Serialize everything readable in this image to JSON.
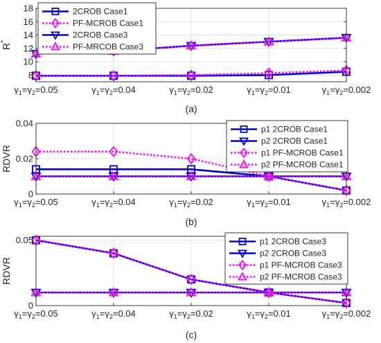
{
  "chart_data": [
    {
      "type": "line",
      "caption": "(a)",
      "ylabel": "R",
      "ylabel_sup": "*",
      "x": [
        "γ1=γ2=0.05",
        "γ1=γ2=0.04",
        "γ1=γ2=0.02",
        "γ1=γ2=0.01",
        "γ1=γ2=0.002"
      ],
      "ylim": [
        7,
        18
      ],
      "yticks": [
        8,
        10,
        12,
        14,
        16,
        18
      ],
      "grid": true,
      "legend_position": "top-left",
      "series": [
        {
          "name": "2CROB Case1",
          "values": [
            7.9,
            7.9,
            7.9,
            8.0,
            8.5
          ],
          "color": "#0000cd",
          "dash": "solid",
          "marker": "square"
        },
        {
          "name": "PF-MCROB Case1",
          "values": [
            7.9,
            7.9,
            8.0,
            8.3,
            8.7
          ],
          "color": "#ff00ff",
          "dash": "dotted",
          "marker": "diamond"
        },
        {
          "name": "2CROB Case3",
          "values": [
            11.2,
            11.6,
            12.4,
            13.0,
            13.6
          ],
          "color": "#0000cd",
          "dash": "solid",
          "marker": "triangle-down"
        },
        {
          "name": "PF-MRCOB Case3",
          "values": [
            11.2,
            11.6,
            12.4,
            13.0,
            13.6
          ],
          "color": "#ff00ff",
          "dash": "dotted",
          "marker": "triangle-up"
        }
      ]
    },
    {
      "type": "line",
      "caption": "(b)",
      "ylabel": "RDVR",
      "x": [
        "γ1=γ2=0.05",
        "γ1=γ2=0.04",
        "γ1=γ2=0.02",
        "γ1=γ2=0.01",
        "γ1=γ2=0.002"
      ],
      "ylim": [
        0,
        0.04
      ],
      "yticks": [
        0,
        0.02,
        0.04
      ],
      "ytick_labels": [
        "0",
        "0.02",
        "0.04"
      ],
      "grid": true,
      "legend_position": "top-right",
      "series": [
        {
          "name": "p1 2CROB Case1",
          "values": [
            0.014,
            0.014,
            0.014,
            0.01,
            0.002
          ],
          "color": "#0000cd",
          "dash": "solid",
          "marker": "square"
        },
        {
          "name": "p2 2CROB Case1",
          "values": [
            0.01,
            0.01,
            0.01,
            0.01,
            0.01
          ],
          "color": "#0000cd",
          "dash": "solid",
          "marker": "triangle-down"
        },
        {
          "name": "p1 PF-MCROB Case1",
          "values": [
            0.024,
            0.024,
            0.02,
            0.01,
            0.002
          ],
          "color": "#ff00ff",
          "dash": "dotted",
          "marker": "diamond"
        },
        {
          "name": "p2 PF-MCROB Case1",
          "values": [
            0.01,
            0.01,
            0.01,
            0.01,
            0.01
          ],
          "color": "#ff00ff",
          "dash": "dotted",
          "marker": "triangle-up"
        }
      ]
    },
    {
      "type": "line",
      "caption": "(c)",
      "ylabel": "RDVR",
      "x": [
        "γ1=γ2=0.05",
        "γ1=γ2=0.04",
        "γ1=γ2=0.02",
        "γ1=γ2=0.01",
        "γ1=γ2=0.002"
      ],
      "ylim": [
        0,
        0.053
      ],
      "yticks": [
        0,
        0.05
      ],
      "ytick_labels": [
        "0",
        "0.05"
      ],
      "grid": true,
      "legend_position": "top-right",
      "series": [
        {
          "name": "p1 2CROB Case3",
          "values": [
            0.05,
            0.04,
            0.02,
            0.01,
            0.002
          ],
          "color": "#0000cd",
          "dash": "solid",
          "marker": "square"
        },
        {
          "name": "p2 2CROB Case3",
          "values": [
            0.01,
            0.01,
            0.01,
            0.01,
            0.01
          ],
          "color": "#0000cd",
          "dash": "solid",
          "marker": "triangle-down"
        },
        {
          "name": "p1 PF-MCROB Case3",
          "values": [
            0.05,
            0.04,
            0.02,
            0.01,
            0.002
          ],
          "color": "#ff00ff",
          "dash": "dotted",
          "marker": "diamond"
        },
        {
          "name": "p2 PF-MCROB Case3",
          "values": [
            0.01,
            0.01,
            0.01,
            0.01,
            0.01
          ],
          "color": "#ff00ff",
          "dash": "dotted",
          "marker": "triangle-up"
        }
      ]
    }
  ]
}
